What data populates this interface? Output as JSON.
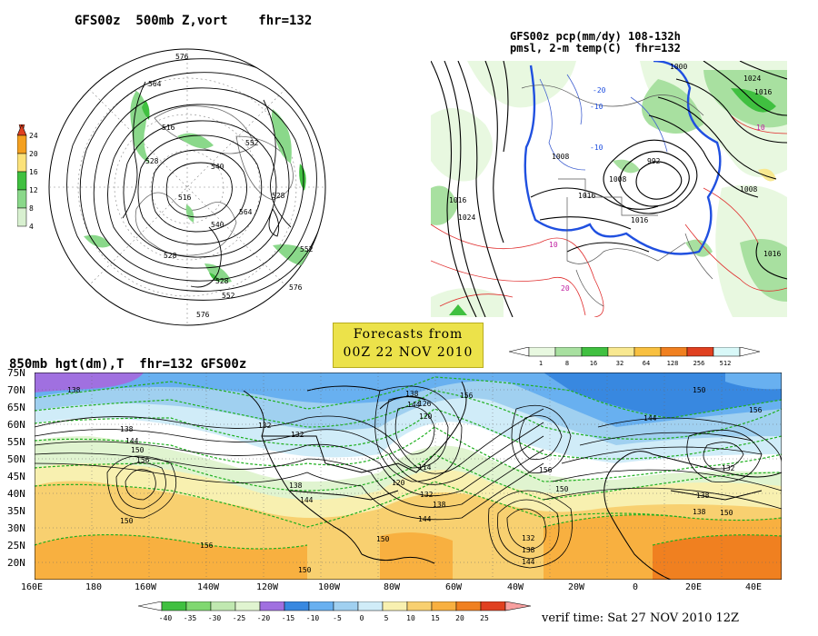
{
  "panels": {
    "polar": {
      "title": "GFS00z  500mb Z,vort    fhr=132",
      "contour_labels": [
        "576",
        "564",
        "516",
        "528",
        "552",
        "540",
        "540",
        "528",
        "516",
        "528",
        "564",
        "552",
        "552",
        "528",
        "576",
        "576"
      ],
      "colorbar": {
        "ticks": [
          "24",
          "20",
          "16",
          "12",
          "8",
          "4"
        ],
        "colors": [
          "#e04020",
          "#f4a020",
          "#fbe27a",
          "#40c040",
          "#8ad88a",
          "#d8f0d0"
        ]
      }
    },
    "precip": {
      "title_line1": "GFS00z pcp(mm/dy) 108-132h",
      "title_line2": "pmsl, 2-m temp(C)  fhr=132",
      "isobar_labels": [
        "1024",
        "1016",
        "1008",
        "1000",
        "992",
        "1008",
        "1016",
        "1024",
        "1016",
        "1008",
        "1016",
        "1016"
      ],
      "temp_labels": [
        "-20",
        "-10",
        "-10",
        "10",
        "20",
        "10"
      ],
      "colorbar": {
        "ticks": [
          "1",
          "8",
          "16",
          "32",
          "64",
          "128",
          "256",
          "512"
        ],
        "colors": [
          "#e8f8e0",
          "#a8e0a0",
          "#40c040",
          "#f8e890",
          "#f8c040",
          "#f08020",
          "#e04020",
          "#d8f8f8"
        ]
      }
    },
    "forecast_box": {
      "line1": "Forecasts from",
      "line2": "00Z 22 NOV 2010"
    },
    "hgt850": {
      "title": "850mb hgt(dm),T  fhr=132 GFS00z",
      "lat_labels": [
        "75N",
        "70N",
        "65N",
        "60N",
        "55N",
        "50N",
        "45N",
        "40N",
        "35N",
        "30N",
        "25N",
        "20N"
      ],
      "lon_labels": [
        "160E",
        "180",
        "160W",
        "140W",
        "120W",
        "100W",
        "80W",
        "60W",
        "40W",
        "20W",
        "0",
        "20E",
        "40E"
      ],
      "contour_labels": [
        "138",
        "138",
        "144",
        "150",
        "156",
        "150",
        "156",
        "132",
        "132",
        "138",
        "144",
        "150",
        "150",
        "156",
        "144",
        "138",
        "126",
        "120",
        "114",
        "120",
        "132",
        "138",
        "144",
        "150",
        "156",
        "132",
        "138",
        "144",
        "150",
        "156",
        "144",
        "132",
        "138",
        "150",
        "138"
      ],
      "colorbar": {
        "ticks": [
          "-40",
          "-35",
          "-30",
          "-25",
          "-20",
          "-15",
          "-10",
          "-5",
          "0",
          "5",
          "10",
          "15",
          "20",
          "25"
        ],
        "colors": [
          "#40c040",
          "#80d870",
          "#c0e8b0",
          "#e0f4d0",
          "#a070e0",
          "#3888e0",
          "#68b0f0",
          "#a0d0f0",
          "#d0ecf8",
          "#f8f0b0",
          "#f8d070",
          "#f8b040",
          "#f08020",
          "#e04020",
          "#f8a0a0"
        ]
      },
      "verif": "verif time: Sat 27 NOV 2010 12Z"
    }
  }
}
